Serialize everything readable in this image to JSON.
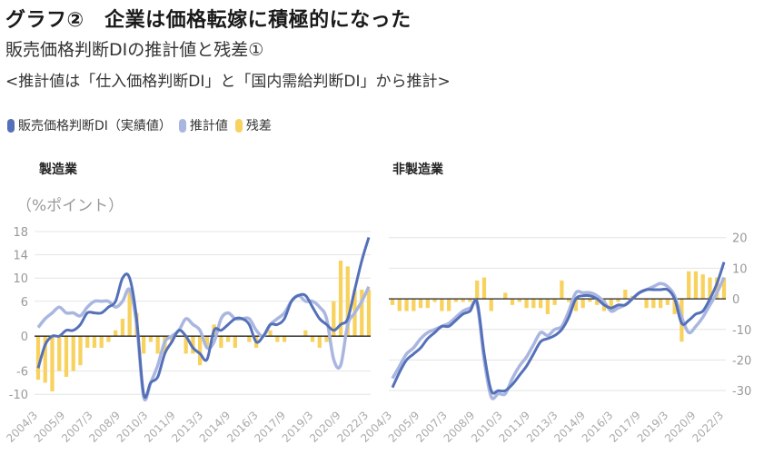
{
  "title": "グラフ②　企業は価格転嫁に積極的になった",
  "subtitle": "販売価格判断DIの推計値と残差①",
  "note": "<推計値は「仕入価格判断DI」と「国内需給判断DI」から推計>",
  "legend": [
    {
      "label": "販売価格判断DI（実績値）",
      "color": "#5470b8"
    },
    {
      "label": "推計値",
      "color": "#a9b6e0"
    },
    {
      "label": "残差",
      "color": "#f8d25e"
    }
  ],
  "chart_data": [
    {
      "type": "line+bar",
      "title": "製造業",
      "ylabel": "（%ポイント）",
      "ylim": [
        -12,
        18
      ],
      "yticks": [
        "18",
        "14",
        "10",
        "6",
        "0",
        "-6",
        "-10"
      ],
      "ytick_values": [
        18,
        14,
        10,
        6,
        0,
        -6,
        -10
      ],
      "x_start": "2004/3",
      "x_ticks": [
        "2004/3",
        "2005/9",
        "2007/3",
        "2008/9",
        "2010/3",
        "2011/9",
        "2013/3",
        "2014/9",
        "2016/3",
        "2017/9",
        "2019/3",
        "2020/9",
        "2022/3"
      ],
      "series": [
        {
          "name": "販売価格判断DI（実績値）",
          "color": "#5470b8",
          "values": [
            -5.5,
            -1.5,
            0,
            0,
            1,
            1,
            2,
            4,
            4,
            4,
            5,
            6,
            10,
            10,
            3,
            -10,
            -8,
            -7,
            -3,
            -1,
            1,
            0,
            -2,
            -3,
            -4,
            1,
            1,
            2,
            3,
            3,
            2,
            -1,
            0,
            2,
            2,
            3,
            6,
            7,
            7,
            5,
            3,
            2,
            1,
            2,
            3,
            8,
            13,
            17
          ]
        },
        {
          "name": "推計値",
          "color": "#a9b6e0",
          "values": [
            1.5,
            3,
            4,
            5,
            4,
            4,
            3.5,
            5,
            6,
            6,
            6,
            5,
            6,
            8,
            2,
            -10.5,
            -8,
            -5,
            -1,
            0,
            1,
            3,
            2,
            1,
            -2,
            -1,
            3,
            4,
            3,
            3,
            3,
            1,
            0,
            2,
            3,
            4,
            6,
            7,
            6,
            6,
            5,
            3,
            -4,
            -5,
            2,
            4,
            6,
            8.5
          ]
        },
        {
          "name": "残差",
          "color": "#f8d25e",
          "values": [
            -7.5,
            -8,
            -9.5,
            -6,
            -7,
            -6,
            -5,
            -2,
            -2,
            -2,
            -1,
            1,
            3,
            8,
            4,
            -3,
            -1,
            -3,
            -3,
            -1,
            0,
            -3,
            -3,
            -5,
            -2,
            2,
            -2,
            -1,
            -2,
            0,
            -1,
            -2,
            0,
            1,
            -1,
            -1,
            0,
            0,
            1,
            -1,
            -2,
            -1,
            6,
            13,
            12,
            8,
            8,
            8
          ]
        }
      ]
    },
    {
      "type": "line+bar",
      "title": "非製造業",
      "ylim": [
        -35,
        22
      ],
      "yticks": [
        "20",
        "10",
        "0",
        "-10",
        "-20",
        "-30"
      ],
      "ytick_values": [
        20,
        10,
        0,
        -10,
        -20,
        -30
      ],
      "x_start": "2004/3",
      "x_ticks": [
        "2004/3",
        "2005/9",
        "2007/3",
        "2008/9",
        "2010/3",
        "2011/9",
        "2013/3",
        "2014/9",
        "2016/3",
        "2017/9",
        "2019/3",
        "2020/9",
        "2022/3"
      ],
      "series": [
        {
          "name": "販売価格判断DI（実績値）",
          "color": "#5470b8",
          "values": [
            -29,
            -24,
            -20,
            -18,
            -16,
            -13,
            -11,
            -9,
            -9,
            -7,
            -5,
            -4,
            -1,
            -18,
            -30,
            -30,
            -30,
            -28,
            -25,
            -22,
            -18,
            -14,
            -13,
            -12,
            -10,
            -6,
            0,
            1,
            1,
            0,
            -2,
            -3,
            -2,
            -2,
            0,
            2,
            3,
            3,
            3,
            3,
            0,
            -8,
            -7,
            -5,
            -4,
            0,
            5,
            12
          ]
        },
        {
          "name": "推計値",
          "color": "#a9b6e0",
          "values": [
            -26,
            -22,
            -18,
            -16,
            -13,
            -11,
            -10,
            -9,
            -8,
            -6,
            -4,
            -3,
            -2,
            -20,
            -32,
            -31,
            -31,
            -26,
            -22,
            -19,
            -15,
            -11,
            -12,
            -10,
            -9,
            -4,
            2,
            2,
            2,
            1,
            -1,
            -4,
            -3,
            -2,
            0,
            2,
            3,
            4,
            5,
            4,
            1,
            -6,
            -11,
            -9,
            -6,
            -2,
            2,
            7
          ]
        },
        {
          "name": "残差",
          "color": "#f8d25e",
          "values": [
            -2,
            -4,
            -4,
            -4,
            -3,
            -3,
            -1,
            -4,
            -4,
            -1,
            -1,
            -1,
            6,
            7,
            -4,
            0,
            2,
            -2,
            -1,
            -3,
            -3,
            -3,
            -5,
            -2,
            6,
            -1,
            -4,
            -3,
            -1,
            -2,
            -4,
            -4,
            -1,
            3,
            1,
            0,
            -3,
            -3,
            -3,
            -2,
            -5,
            -14,
            9,
            9,
            8,
            7,
            7,
            7
          ]
        }
      ]
    }
  ]
}
